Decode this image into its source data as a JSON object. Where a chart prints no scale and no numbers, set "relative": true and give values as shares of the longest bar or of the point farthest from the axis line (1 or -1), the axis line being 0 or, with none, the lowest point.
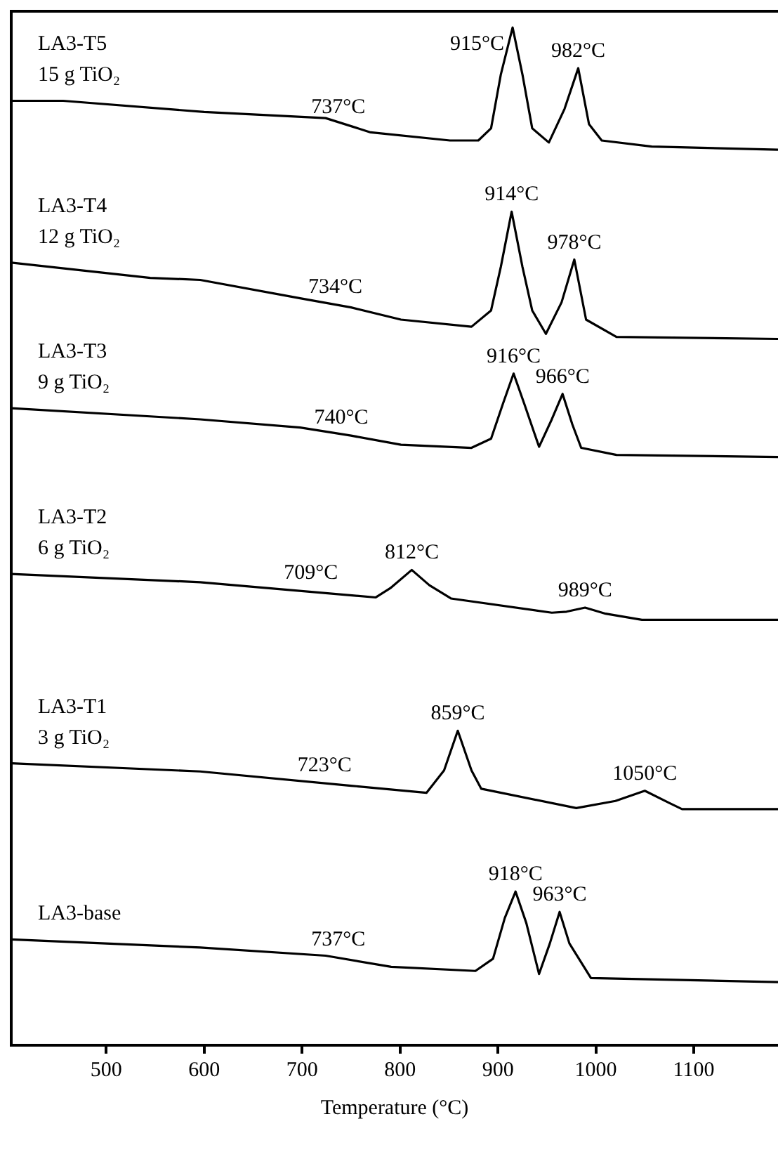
{
  "chart_data": {
    "type": "line",
    "relative": true,
    "xlabel": "Temperature (°C)",
    "xlim": [
      403,
      1186
    ],
    "xticks": [
      500,
      600,
      700,
      800,
      900,
      1000,
      1100
    ],
    "grid": false,
    "legend": false,
    "marker": "none",
    "line_style": "solid",
    "series": [
      {
        "name": "LA3-T5\n15 g TiO₂",
        "color": "#000000",
        "x": [
          403,
          456,
          600,
          724,
          770,
          851,
          880,
          893,
          903,
          915,
          925,
          935,
          952,
          968,
          982,
          993,
          1006,
          1057,
          1186
        ],
        "values": [
          0.928,
          0.928,
          0.917,
          0.911,
          0.897,
          0.889,
          0.889,
          0.901,
          0.954,
          1.0,
          0.954,
          0.901,
          0.887,
          0.92,
          0.96,
          0.905,
          0.889,
          0.883,
          0.88
        ]
      },
      {
        "name": "LA3-T4\n12 g TiO₂",
        "color": "#000000",
        "x": [
          403,
          545,
          596,
          698,
          750,
          801,
          873,
          893,
          903,
          914,
          925,
          935,
          949,
          965,
          978,
          990,
          1021,
          1186
        ],
        "values": [
          0.769,
          0.754,
          0.752,
          0.734,
          0.725,
          0.713,
          0.706,
          0.722,
          0.765,
          0.819,
          0.765,
          0.722,
          0.699,
          0.73,
          0.772,
          0.713,
          0.696,
          0.694
        ]
      },
      {
        "name": "LA3-T3\n9 g TiO₂",
        "color": "#000000",
        "x": [
          403,
          596,
          698,
          750,
          801,
          873,
          893,
          905,
          916,
          927,
          942,
          955,
          966,
          976,
          985,
          1021,
          1186
        ],
        "values": [
          0.626,
          0.615,
          0.607,
          0.599,
          0.59,
          0.587,
          0.596,
          0.63,
          0.66,
          0.63,
          0.588,
          0.615,
          0.64,
          0.61,
          0.587,
          0.58,
          0.578
        ]
      },
      {
        "name": "LA3-T2\n6 g TiO₂",
        "color": "#000000",
        "x": [
          403,
          596,
          775,
          790,
          812,
          830,
          852,
          955,
          970,
          989,
          1010,
          1047,
          1186
        ],
        "values": [
          0.463,
          0.455,
          0.44,
          0.449,
          0.467,
          0.452,
          0.439,
          0.425,
          0.426,
          0.43,
          0.424,
          0.418,
          0.418
        ]
      },
      {
        "name": "LA3-T1\n3 g TiO₂",
        "color": "#000000",
        "x": [
          403,
          596,
          750,
          827,
          845,
          859,
          873,
          883,
          980,
          1020,
          1050,
          1075,
          1088,
          1186
        ],
        "values": [
          0.277,
          0.269,
          0.255,
          0.248,
          0.27,
          0.309,
          0.27,
          0.252,
          0.233,
          0.24,
          0.25,
          0.238,
          0.232,
          0.232
        ]
      },
      {
        "name": "LA3-base",
        "color": "#000000",
        "x": [
          403,
          596,
          724,
          791,
          877,
          895,
          907,
          918,
          929,
          942,
          953,
          963,
          973,
          995,
          1186
        ],
        "values": [
          0.104,
          0.096,
          0.088,
          0.077,
          0.073,
          0.085,
          0.125,
          0.151,
          0.12,
          0.07,
          0.1,
          0.131,
          0.1,
          0.066,
          0.062
        ]
      }
    ],
    "annotations": [
      {
        "text": "915°C",
        "x": 915,
        "y": 1.0
      },
      {
        "text": "982°C",
        "x": 982,
        "y": 0.96
      },
      {
        "text": "737°C",
        "x": 737,
        "y": 0.905
      },
      {
        "text": "914°C",
        "x": 914,
        "y": 0.819
      },
      {
        "text": "978°C",
        "x": 978,
        "y": 0.772
      },
      {
        "text": "734°C",
        "x": 734,
        "y": 0.728
      },
      {
        "text": "916°C",
        "x": 916,
        "y": 0.66
      },
      {
        "text": "966°C",
        "x": 966,
        "y": 0.64
      },
      {
        "text": "740°C",
        "x": 740,
        "y": 0.6
      },
      {
        "text": "812°C",
        "x": 812,
        "y": 0.467
      },
      {
        "text": "989°C",
        "x": 989,
        "y": 0.43
      },
      {
        "text": "709°C",
        "x": 709,
        "y": 0.447
      },
      {
        "text": "859°C",
        "x": 859,
        "y": 0.309
      },
      {
        "text": "1050°C",
        "x": 1050,
        "y": 0.25
      },
      {
        "text": "723°C",
        "x": 723,
        "y": 0.258
      },
      {
        "text": "918°C",
        "x": 918,
        "y": 0.151
      },
      {
        "text": "963°C",
        "x": 963,
        "y": 0.131
      },
      {
        "text": "737°C",
        "x": 737,
        "y": 0.087
      }
    ]
  }
}
